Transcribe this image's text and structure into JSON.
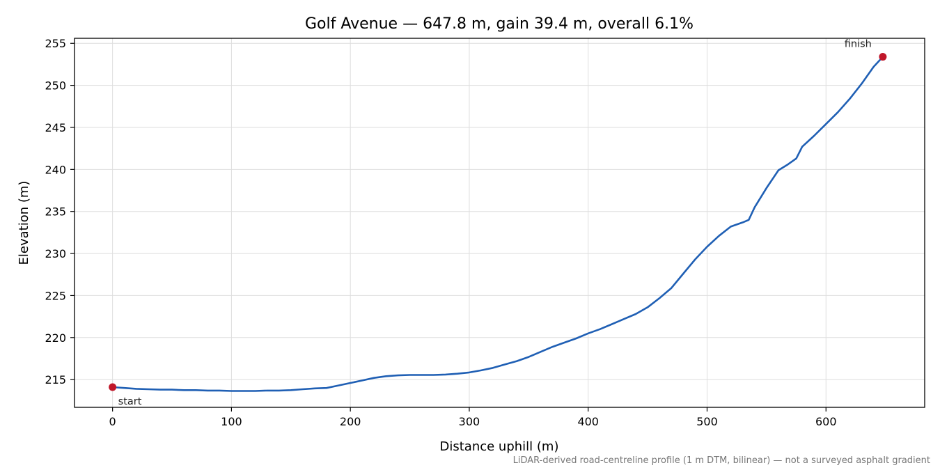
{
  "chart_data": {
    "type": "line",
    "title": "Golf Avenue — 647.8 m, gain 39.4 m, overall 6.1%",
    "xlabel": "Distance uphill (m)",
    "ylabel": "Elevation (m)",
    "footnote": "LiDAR-derived road-centreline profile (1 m DTM, bilinear) — not a surveyed asphalt gradient",
    "xlim": [
      -32,
      683
    ],
    "ylim": [
      211.7,
      255.6
    ],
    "xticks": [
      0,
      100,
      200,
      300,
      400,
      500,
      600
    ],
    "yticks": [
      215,
      220,
      225,
      230,
      235,
      240,
      245,
      250,
      255
    ],
    "grid": true,
    "line_color": "#1f5fb4",
    "marker_color": "#c0172a",
    "series": [
      {
        "x": [
          0,
          10,
          20,
          30,
          40,
          50,
          60,
          70,
          80,
          90,
          100,
          110,
          120,
          130,
          140,
          150,
          160,
          170,
          180,
          190,
          200,
          210,
          220,
          230,
          240,
          250,
          260,
          270,
          280,
          290,
          300,
          310,
          320,
          330,
          340,
          350,
          360,
          370,
          380,
          390,
          400,
          410,
          420,
          430,
          440,
          450,
          460,
          470,
          480,
          490,
          500,
          510,
          520,
          530,
          535,
          540,
          550,
          560,
          568,
          575,
          580,
          590,
          600,
          610,
          620,
          630,
          640,
          647.8
        ],
        "y": [
          214.1,
          214.0,
          213.9,
          213.85,
          213.8,
          213.8,
          213.75,
          213.75,
          213.7,
          213.7,
          213.65,
          213.65,
          213.65,
          213.7,
          213.7,
          213.75,
          213.85,
          213.95,
          214.0,
          214.3,
          214.6,
          214.9,
          215.2,
          215.4,
          215.5,
          215.55,
          215.55,
          215.55,
          215.6,
          215.7,
          215.85,
          216.1,
          216.4,
          216.8,
          217.2,
          217.7,
          218.3,
          218.9,
          219.4,
          219.9,
          220.5,
          221.0,
          221.6,
          222.2,
          222.8,
          223.6,
          224.7,
          225.9,
          227.6,
          229.3,
          230.8,
          232.1,
          233.2,
          233.7,
          234.0,
          235.5,
          237.8,
          239.9,
          240.6,
          241.3,
          242.7,
          244.0,
          245.4,
          246.8,
          248.4,
          250.2,
          252.2,
          253.4
        ]
      }
    ],
    "annotations": [
      {
        "text": "start",
        "x": 0,
        "y": 214.1
      },
      {
        "text": "finish",
        "x": 647.8,
        "y": 253.4
      }
    ]
  }
}
